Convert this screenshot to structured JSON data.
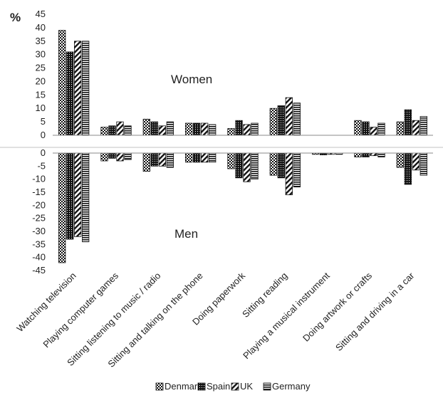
{
  "chart_data": {
    "type": "bar",
    "unit_label": "%",
    "categories": [
      "Watching television",
      "Playing computer games",
      "Sitting listening to music / radio",
      "Sitting and talking on the phone",
      "Doing paperwork",
      "Sitting reading",
      "Playing a musical instrument",
      "Doing artwork or crafts",
      "Sitting and driving in a car"
    ],
    "panels": {
      "women": {
        "label": "Women",
        "ylim": [
          0,
          45
        ],
        "ticks": [
          0,
          5,
          10,
          15,
          20,
          25,
          30,
          35,
          40,
          45
        ]
      },
      "men": {
        "label": "Men",
        "ylim": [
          -45,
          0
        ],
        "ticks": [
          0,
          -5,
          -10,
          -15,
          -20,
          -25,
          -30,
          -35,
          -40,
          -45
        ]
      }
    },
    "series": [
      {
        "name": "Denmark",
        "pattern": "checker",
        "women": [
          39,
          3,
          6,
          4.5,
          2.5,
          10,
          0,
          5.5,
          5
        ],
        "men": [
          -42,
          -3,
          -7,
          -3.5,
          -6,
          -8.5,
          -0.5,
          -1.5,
          -5.5
        ]
      },
      {
        "name": "Spain",
        "pattern": "dots",
        "women": [
          31,
          3.5,
          5,
          4.5,
          5.5,
          11,
          0,
          5,
          9.5
        ],
        "men": [
          -33,
          -2,
          -5,
          -3.5,
          -9.5,
          -9.5,
          -0.7,
          -1.5,
          -12
        ]
      },
      {
        "name": "UK",
        "pattern": "diagonal",
        "women": [
          35,
          5,
          3.5,
          4.5,
          4,
          14,
          0,
          3,
          5.5
        ],
        "men": [
          -32,
          -3,
          -5,
          -3.5,
          -11,
          -16,
          -0.5,
          -1,
          -6.5
        ]
      },
      {
        "name": "Germany",
        "pattern": "horizontal",
        "women": [
          35,
          3.5,
          5,
          4,
          4.5,
          12,
          0,
          4.5,
          7
        ],
        "men": [
          -34,
          -2.5,
          -5.5,
          -3.5,
          -10,
          -13,
          -0.5,
          -1.5,
          -8.5
        ]
      }
    ],
    "legend_position": "bottom",
    "grid": false
  }
}
